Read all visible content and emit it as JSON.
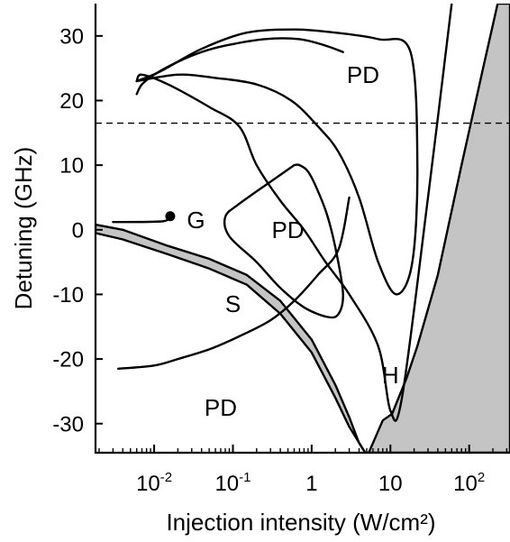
{
  "chart_data": {
    "type": "line",
    "xlabel": "Injection intensity (W/cm²)",
    "ylabel": "Detuning (GHz)",
    "xscale": "log",
    "xlim": [
      0.0018,
      330
    ],
    "ylim": [
      -34.5,
      35
    ],
    "x_ticks": [
      {
        "value": 0.01,
        "base": "10",
        "exp": "-2"
      },
      {
        "value": 0.1,
        "base": "10",
        "exp": "-1"
      },
      {
        "value": 1,
        "base": "1",
        "exp": ""
      },
      {
        "value": 10,
        "base": "10",
        "exp": ""
      },
      {
        "value": 100,
        "base": "10",
        "exp": "2"
      }
    ],
    "y_ticks": [
      {
        "value": 30,
        "label": "30"
      },
      {
        "value": 20,
        "label": "20"
      },
      {
        "value": 10,
        "label": "10"
      },
      {
        "value": 0,
        "label": "0"
      },
      {
        "value": -10,
        "label": "-10"
      },
      {
        "value": -20,
        "label": "-20"
      },
      {
        "value": -30,
        "label": "-30"
      }
    ],
    "grid": false,
    "reference_line": {
      "y": 16.5,
      "style": "dashed"
    },
    "region_labels": [
      {
        "text": "PD",
        "x": 4.5,
        "y": 24
      },
      {
        "text": "PD",
        "x": 0.5,
        "y": 0
      },
      {
        "text": "PD",
        "x": 0.07,
        "y": -27.5
      },
      {
        "text": "S",
        "x": 0.1,
        "y": -11.5
      },
      {
        "text": "H",
        "x": 10,
        "y": -22.5
      },
      {
        "text": "G",
        "x": 0.034,
        "y": 1.5
      }
    ],
    "point_G": {
      "x": 0.016,
      "y": 2.1
    },
    "locking_band": [
      [
        0.0018,
        0.8
      ],
      [
        0.004,
        0
      ],
      [
        0.015,
        -2.5
      ],
      [
        0.05,
        -4.5
      ],
      [
        0.15,
        -7
      ],
      [
        0.4,
        -11
      ],
      [
        1,
        -17
      ],
      [
        2,
        -24
      ],
      [
        3,
        -29
      ],
      [
        4,
        -33
      ],
      [
        4.8,
        -34.5
      ],
      [
        5.3,
        -34.5
      ],
      [
        6,
        -33
      ],
      [
        8,
        -29.5
      ],
      [
        10.5,
        -28.5
      ],
      [
        16,
        -23
      ],
      [
        22,
        -18
      ],
      [
        40,
        -7
      ],
      [
        80,
        10
      ],
      [
        150,
        25
      ],
      [
        230,
        35
      ],
      [
        330,
        35
      ],
      [
        330,
        -34.5
      ],
      [
        5.3,
        -34.5
      ],
      [
        4.8,
        -34.5
      ],
      [
        3,
        -30.5
      ],
      [
        2,
        -26
      ],
      [
        1,
        -19
      ],
      [
        0.4,
        -13
      ],
      [
        0.15,
        -8.5
      ],
      [
        0.05,
        -6
      ],
      [
        0.015,
        -3.8
      ],
      [
        0.004,
        -1.5
      ],
      [
        0.0018,
        -0.5
      ]
    ],
    "series": [
      {
        "points": [
          [
            0.006,
            23
          ],
          [
            0.007,
            24
          ],
          [
            0.015,
            22.5
          ],
          [
            0.05,
            19
          ],
          [
            0.12,
            16
          ],
          [
            0.2,
            10
          ],
          [
            0.4,
            4.5
          ],
          [
            0.8,
            0
          ],
          [
            1.5,
            -5
          ],
          [
            3,
            -10
          ],
          [
            7,
            -18
          ],
          [
            10,
            -28
          ],
          [
            14,
            -26
          ],
          [
            30,
            5
          ],
          [
            60,
            35
          ]
        ]
      },
      {
        "points": [
          [
            0.003,
            1.2
          ],
          [
            0.0125,
            1.3
          ],
          [
            0.015,
            2
          ]
        ]
      },
      {
        "points": [
          [
            0.0035,
            -21.5
          ],
          [
            0.01,
            -21
          ],
          [
            0.02,
            -20
          ],
          [
            0.05,
            -18.5
          ],
          [
            0.12,
            -16.5
          ],
          [
            0.3,
            -14
          ],
          [
            0.6,
            -11
          ],
          [
            1.2,
            -7
          ],
          [
            2.2,
            -3
          ],
          [
            3,
            5
          ]
        ]
      },
      {
        "points": [
          [
            0.6,
            10
          ],
          [
            0.35,
            8
          ],
          [
            0.12,
            4
          ],
          [
            0.08,
            2
          ],
          [
            0.09,
            -1
          ],
          [
            0.2,
            -5
          ],
          [
            0.4,
            -9
          ],
          [
            0.8,
            -12
          ],
          [
            1.6,
            -13.5
          ],
          [
            2.2,
            -13
          ],
          [
            2.5,
            -10
          ],
          [
            2.1,
            -4
          ],
          [
            1.6,
            2
          ],
          [
            1.2,
            6
          ],
          [
            0.9,
            9
          ],
          [
            0.7,
            10
          ],
          [
            0.6,
            10
          ]
        ]
      },
      {
        "points": [
          [
            0.006,
            23
          ],
          [
            0.012,
            24.5
          ],
          [
            0.04,
            28
          ],
          [
            0.15,
            30.5
          ],
          [
            0.6,
            31
          ],
          [
            2,
            30.5
          ],
          [
            7,
            29.5
          ],
          [
            18,
            27.5
          ],
          [
            22,
            10
          ],
          [
            19,
            -5
          ],
          [
            12,
            -10
          ],
          [
            7,
            -5
          ],
          [
            4,
            5
          ],
          [
            2.2,
            12
          ],
          [
            1.2,
            16
          ],
          [
            0.55,
            20
          ],
          [
            0.2,
            22.5
          ],
          [
            0.06,
            23.5
          ],
          [
            0.02,
            24
          ],
          [
            0.006,
            23
          ]
        ]
      },
      {
        "points": [
          [
            0.006,
            21
          ],
          [
            0.007,
            22.5
          ],
          [
            0.01,
            24
          ],
          [
            0.02,
            26
          ],
          [
            0.04,
            27.5
          ],
          [
            0.08,
            28.5
          ],
          [
            0.25,
            29.5
          ],
          [
            0.7,
            29.5
          ],
          [
            1.5,
            28.5
          ],
          [
            2.5,
            27.5
          ]
        ]
      }
    ]
  }
}
